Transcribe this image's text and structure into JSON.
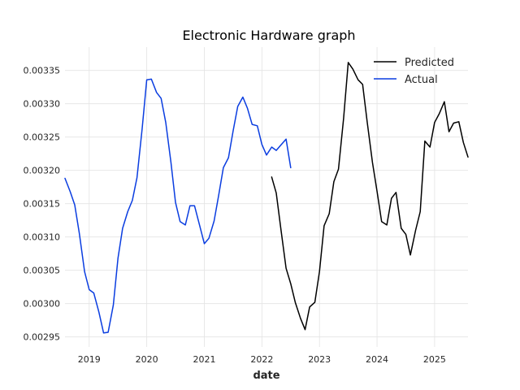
{
  "chart_data": {
    "type": "line",
    "title": "Electronic Hardware graph",
    "xlabel": "date",
    "ylabel": "",
    "xlim": [
      2018.58,
      2025.58
    ],
    "ylim": [
      0.002935,
      0.003385
    ],
    "x_ticks": [
      2019,
      2020,
      2021,
      2022,
      2023,
      2024,
      2025
    ],
    "x_tick_labels": [
      "2019",
      "2020",
      "2021",
      "2022",
      "2023",
      "2024",
      "2025"
    ],
    "y_ticks": [
      0.00295,
      0.003,
      0.00305,
      0.0031,
      0.00315,
      0.0032,
      0.00325,
      0.0033,
      0.00335
    ],
    "y_tick_labels": [
      "0.00295",
      "0.00300",
      "0.00305",
      "0.00310",
      "0.00315",
      "0.00320",
      "0.00325",
      "0.00330",
      "0.00335"
    ],
    "grid": true,
    "legend_position": "top-right",
    "series": [
      {
        "name": "Predicted",
        "color": "#000000",
        "x": [
          2022.17,
          2022.25,
          2022.33,
          2022.42,
          2022.5,
          2022.58,
          2022.67,
          2022.75,
          2022.83,
          2022.92,
          2023.0,
          2023.08,
          2023.17,
          2023.25,
          2023.33,
          2023.42,
          2023.5,
          2023.58,
          2023.67,
          2023.75,
          2023.83,
          2023.92,
          2024.0,
          2024.08,
          2024.17,
          2024.25,
          2024.33,
          2024.42,
          2024.5,
          2024.58,
          2024.67,
          2024.75,
          2024.83,
          2024.92,
          2025.0,
          2025.08,
          2025.17,
          2025.25,
          2025.33,
          2025.42,
          2025.5,
          2025.58
        ],
        "y": [
          0.00319,
          0.003166,
          0.003112,
          0.003053,
          0.00303,
          0.003002,
          0.002978,
          0.002961,
          0.002995,
          0.003002,
          0.003048,
          0.003117,
          0.003135,
          0.003183,
          0.003202,
          0.003278,
          0.003362,
          0.003352,
          0.003336,
          0.003329,
          0.003272,
          0.003212,
          0.003169,
          0.003123,
          0.003118,
          0.003158,
          0.003167,
          0.003113,
          0.003104,
          0.003073,
          0.00311,
          0.003138,
          0.003244,
          0.003235,
          0.003272,
          0.003285,
          0.003303,
          0.003258,
          0.003271,
          0.003273,
          0.003242,
          0.00322
        ]
      },
      {
        "name": "Actual",
        "color": "#0a3de0",
        "x": [
          2018.58,
          2018.67,
          2018.75,
          2018.83,
          2018.92,
          2019.0,
          2019.08,
          2019.17,
          2019.25,
          2019.33,
          2019.42,
          2019.5,
          2019.58,
          2019.67,
          2019.75,
          2019.83,
          2019.92,
          2020.0,
          2020.08,
          2020.17,
          2020.25,
          2020.33,
          2020.42,
          2020.5,
          2020.58,
          2020.67,
          2020.75,
          2020.83,
          2020.92,
          2021.0,
          2021.08,
          2021.17,
          2021.25,
          2021.33,
          2021.42,
          2021.5,
          2021.58,
          2021.67,
          2021.75,
          2021.83,
          2021.92,
          2022.0,
          2022.08,
          2022.17,
          2022.25,
          2022.33,
          2022.42,
          2022.5
        ],
        "y": [
          0.003188,
          0.003168,
          0.003148,
          0.003105,
          0.003048,
          0.003021,
          0.003016,
          0.002987,
          0.002956,
          0.002957,
          0.002998,
          0.003068,
          0.003113,
          0.003138,
          0.003155,
          0.003189,
          0.003262,
          0.003336,
          0.003337,
          0.003317,
          0.003308,
          0.003272,
          0.003212,
          0.003152,
          0.003123,
          0.003118,
          0.003147,
          0.003147,
          0.003117,
          0.00309,
          0.003098,
          0.003124,
          0.003163,
          0.003204,
          0.003219,
          0.003259,
          0.003296,
          0.00331,
          0.003293,
          0.003269,
          0.003267,
          0.003239,
          0.003223,
          0.003235,
          0.00323,
          0.003238,
          0.003247,
          0.003204
        ]
      }
    ]
  }
}
